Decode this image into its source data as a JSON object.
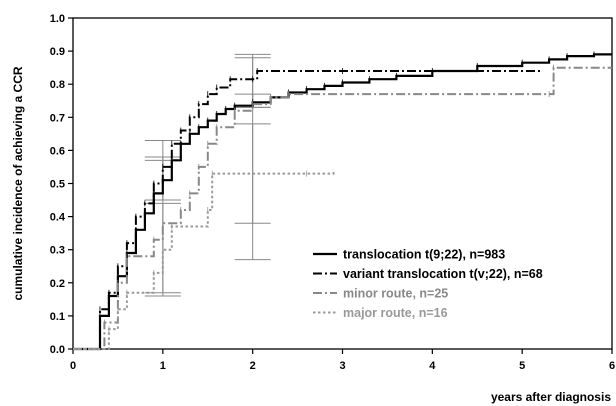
{
  "chart_data": {
    "type": "line",
    "title": "",
    "xlabel": "years after diagnosis",
    "ylabel": "cumulative incidence of achieving a CCR",
    "xlim": [
      0,
      6
    ],
    "ylim": [
      0,
      1.0
    ],
    "x_ticks": [
      0,
      1,
      2,
      3,
      4,
      5,
      6
    ],
    "y_ticks": [
      "0.0",
      "0.1",
      "0.2",
      "0.3",
      "0.4",
      "0.5",
      "0.6",
      "0.7",
      "0.8",
      "0.9",
      "1.0"
    ],
    "grid": false,
    "legend_position": "bottom-right",
    "series": [
      {
        "name": "translocation t(9;22), n=983",
        "color": "#000000",
        "style": "solid",
        "points": [
          [
            0.0,
            0.0
          ],
          [
            0.25,
            0.0
          ],
          [
            0.3,
            0.1
          ],
          [
            0.4,
            0.16
          ],
          [
            0.5,
            0.22
          ],
          [
            0.6,
            0.29
          ],
          [
            0.7,
            0.36
          ],
          [
            0.8,
            0.41
          ],
          [
            0.9,
            0.47
          ],
          [
            1.0,
            0.51
          ],
          [
            1.1,
            0.57
          ],
          [
            1.2,
            0.62
          ],
          [
            1.3,
            0.65
          ],
          [
            1.4,
            0.67
          ],
          [
            1.5,
            0.69
          ],
          [
            1.6,
            0.71
          ],
          [
            1.7,
            0.725
          ],
          [
            1.8,
            0.735
          ],
          [
            2.0,
            0.745
          ],
          [
            2.2,
            0.76
          ],
          [
            2.4,
            0.775
          ],
          [
            2.6,
            0.785
          ],
          [
            2.8,
            0.795
          ],
          [
            3.0,
            0.805
          ],
          [
            3.3,
            0.815
          ],
          [
            3.6,
            0.825
          ],
          [
            4.0,
            0.84
          ],
          [
            4.5,
            0.855
          ],
          [
            5.0,
            0.865
          ],
          [
            5.3,
            0.875
          ],
          [
            5.5,
            0.885
          ],
          [
            5.8,
            0.89
          ],
          [
            6.0,
            0.89
          ]
        ],
        "error_bars": [
          {
            "x": 1.0,
            "lower": 0.45,
            "upper": 0.58
          },
          {
            "x": 2.0,
            "lower": 0.73,
            "upper": 0.77
          }
        ]
      },
      {
        "name": "variant translocation t(v;22), n=68",
        "color": "#000000",
        "style": "dash-dot",
        "points": [
          [
            0.0,
            0.0
          ],
          [
            0.25,
            0.0
          ],
          [
            0.3,
            0.12
          ],
          [
            0.4,
            0.17
          ],
          [
            0.5,
            0.25
          ],
          [
            0.6,
            0.32
          ],
          [
            0.7,
            0.4
          ],
          [
            0.8,
            0.44
          ],
          [
            0.9,
            0.5
          ],
          [
            1.0,
            0.55
          ],
          [
            1.1,
            0.62
          ],
          [
            1.2,
            0.66
          ],
          [
            1.3,
            0.7
          ],
          [
            1.4,
            0.74
          ],
          [
            1.5,
            0.77
          ],
          [
            1.6,
            0.79
          ],
          [
            1.75,
            0.815
          ],
          [
            2.0,
            0.815
          ],
          [
            2.05,
            0.84
          ],
          [
            3.0,
            0.84
          ],
          [
            5.2,
            0.84
          ]
        ],
        "error_bars": [
          {
            "x": 1.0,
            "lower": 0.45,
            "upper": 0.63
          },
          {
            "x": 2.0,
            "lower": 0.73,
            "upper": 0.89
          }
        ]
      },
      {
        "name": "minor route, n=25",
        "color": "#888888",
        "style": "dash-dot",
        "points": [
          [
            0.0,
            0.0
          ],
          [
            0.3,
            0.0
          ],
          [
            0.35,
            0.08
          ],
          [
            0.5,
            0.2
          ],
          [
            0.6,
            0.28
          ],
          [
            0.9,
            0.33
          ],
          [
            1.0,
            0.38
          ],
          [
            1.2,
            0.42
          ],
          [
            1.3,
            0.47
          ],
          [
            1.4,
            0.55
          ],
          [
            1.5,
            0.62
          ],
          [
            1.6,
            0.67
          ],
          [
            1.8,
            0.72
          ],
          [
            2.0,
            0.74
          ],
          [
            2.2,
            0.76
          ],
          [
            2.4,
            0.77
          ],
          [
            5.3,
            0.77
          ],
          [
            5.35,
            0.85
          ],
          [
            6.0,
            0.85
          ]
        ],
        "error_bars": [
          {
            "x": 1.0,
            "lower": 0.17,
            "upper": 0.57
          },
          {
            "x": 2.0,
            "lower": 0.27,
            "upper": 0.88
          }
        ]
      },
      {
        "name": "major route, n=16",
        "color": "#999999",
        "style": "dotted",
        "points": [
          [
            0.0,
            0.0
          ],
          [
            0.35,
            0.0
          ],
          [
            0.4,
            0.06
          ],
          [
            0.5,
            0.12
          ],
          [
            0.6,
            0.17
          ],
          [
            0.9,
            0.23
          ],
          [
            1.0,
            0.3
          ],
          [
            1.1,
            0.37
          ],
          [
            1.5,
            0.42
          ],
          [
            1.55,
            0.53
          ],
          [
            2.6,
            0.53
          ],
          [
            2.9,
            0.535
          ]
        ],
        "error_bars": [
          {
            "x": 1.0,
            "lower": 0.16,
            "upper": 0.44
          },
          {
            "x": 2.0,
            "lower": 0.38,
            "upper": 0.68
          }
        ]
      }
    ]
  }
}
